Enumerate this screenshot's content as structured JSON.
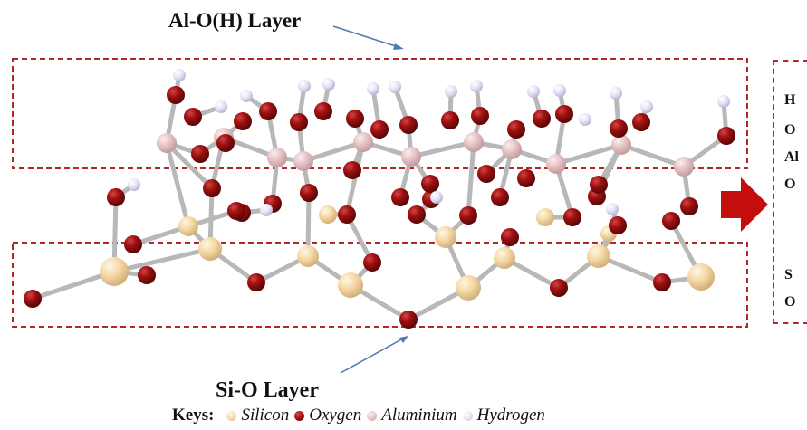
{
  "labels": {
    "top_layer": "Al-O(H) Layer",
    "bottom_layer": "Si-O Layer"
  },
  "side_labels": [
    "H",
    "O",
    "Al",
    "O",
    "S",
    "O"
  ],
  "keys": {
    "title": "Keys:",
    "items": [
      {
        "label": "Silicon",
        "color": "#f5d9a6"
      },
      {
        "label": "Oxygen",
        "color": "#9e1010"
      },
      {
        "label": "Aluminium",
        "color": "#e6c3c5"
      },
      {
        "label": "Hydrogen",
        "color": "#e4e4f6"
      }
    ]
  },
  "colors": {
    "dashed_box": "#b3262b",
    "arrow": "#c40d0d",
    "pointer": "#4a78b8",
    "bond": "#b8b8b8"
  }
}
